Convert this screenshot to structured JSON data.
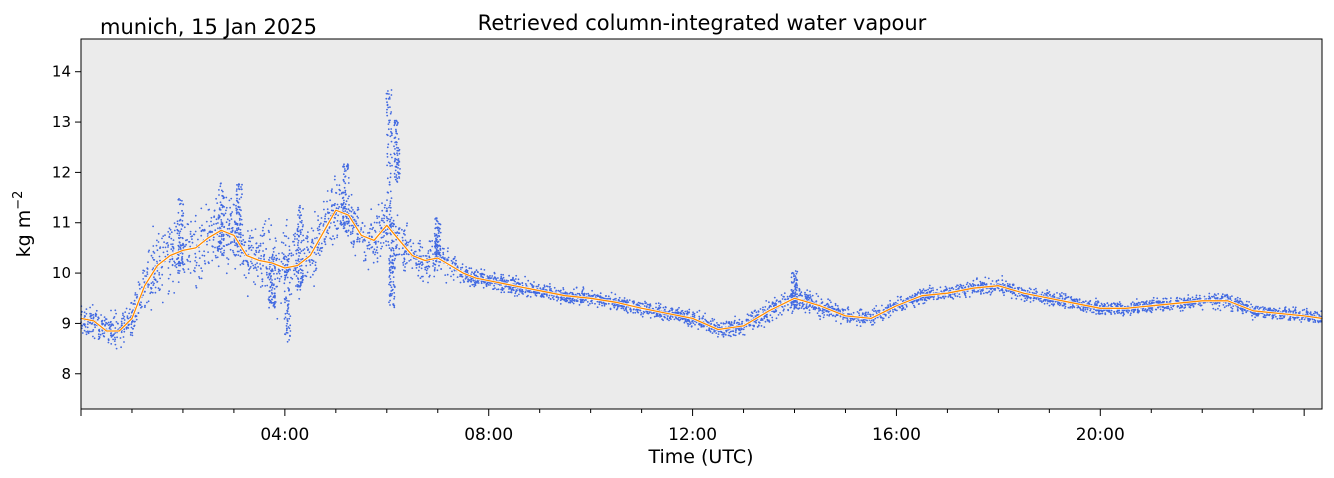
{
  "chart_data": {
    "type": "scatter",
    "title": "Retrieved column-integrated water vapour",
    "subtitle": "munich, 15 Jan 2025",
    "xlabel": "Time (UTC)",
    "ylabel_main": "kg m",
    "ylabel_sup": "−2",
    "x_unit": "hours UTC",
    "xlim": [
      0,
      24.35
    ],
    "ylim": [
      7.3,
      14.65
    ],
    "x_ticks": [
      {
        "value": 4,
        "label": "04:00"
      },
      {
        "value": 8,
        "label": "08:00"
      },
      {
        "value": 12,
        "label": "12:00"
      },
      {
        "value": 16,
        "label": "16:00"
      },
      {
        "value": 20,
        "label": "20:00"
      },
      {
        "value": 24,
        "label": ""
      }
    ],
    "y_ticks": [
      {
        "value": 8,
        "label": "8"
      },
      {
        "value": 9,
        "label": "9"
      },
      {
        "value": 10,
        "label": "10"
      },
      {
        "value": 11,
        "label": "11"
      },
      {
        "value": 12,
        "label": "12"
      },
      {
        "value": 13,
        "label": "13"
      },
      {
        "value": 14,
        "label": "14"
      }
    ],
    "grid": false,
    "background": "#ebebeb",
    "series": [
      {
        "kind": "scatter",
        "color": "#4169e1",
        "x": [
          0.0,
          0.25,
          0.5,
          0.75,
          1.0,
          1.25,
          1.5,
          1.75,
          2.0,
          2.25,
          2.5,
          2.75,
          3.0,
          3.25,
          3.5,
          3.75,
          4.0,
          4.25,
          4.5,
          4.75,
          5.0,
          5.25,
          5.5,
          5.75,
          6.0,
          6.25,
          6.5,
          6.75,
          7.0,
          7.25,
          7.5,
          7.75,
          8.0,
          8.5,
          9.0,
          9.5,
          10.0,
          10.5,
          11.0,
          11.5,
          12.0,
          12.5,
          13.0,
          13.5,
          14.0,
          14.5,
          15.0,
          15.5,
          16.0,
          16.5,
          17.0,
          17.5,
          18.0,
          18.5,
          19.0,
          19.5,
          20.0,
          20.5,
          21.0,
          21.5,
          22.0,
          22.5,
          23.0,
          23.5,
          24.0,
          24.35
        ],
        "y": [
          9.1,
          9.05,
          8.85,
          8.85,
          9.1,
          9.75,
          10.15,
          10.35,
          10.45,
          10.5,
          10.7,
          10.85,
          10.75,
          10.35,
          10.25,
          10.2,
          10.1,
          10.15,
          10.35,
          10.8,
          11.25,
          11.15,
          10.75,
          10.65,
          10.95,
          10.65,
          10.35,
          10.25,
          10.3,
          10.15,
          10.0,
          9.9,
          9.85,
          9.75,
          9.65,
          9.55,
          9.5,
          9.42,
          9.3,
          9.2,
          9.1,
          8.88,
          8.95,
          9.25,
          9.5,
          9.35,
          9.15,
          9.1,
          9.35,
          9.55,
          9.6,
          9.7,
          9.75,
          9.6,
          9.5,
          9.4,
          9.3,
          9.3,
          9.35,
          9.4,
          9.45,
          9.45,
          9.25,
          9.2,
          9.15,
          9.1
        ],
        "spread": [
          0.25,
          0.25,
          0.3,
          0.3,
          0.35,
          0.5,
          0.6,
          0.6,
          0.6,
          0.6,
          0.6,
          0.65,
          0.6,
          0.55,
          0.6,
          0.7,
          0.7,
          0.55,
          0.5,
          0.55,
          0.6,
          0.45,
          0.4,
          0.45,
          0.45,
          0.35,
          0.4,
          0.4,
          0.35,
          0.25,
          0.18,
          0.16,
          0.15,
          0.14,
          0.13,
          0.13,
          0.13,
          0.13,
          0.13,
          0.12,
          0.13,
          0.15,
          0.16,
          0.2,
          0.22,
          0.18,
          0.15,
          0.13,
          0.13,
          0.12,
          0.12,
          0.12,
          0.13,
          0.12,
          0.12,
          0.12,
          0.12,
          0.12,
          0.12,
          0.12,
          0.13,
          0.15,
          0.13,
          0.12,
          0.12,
          0.12
        ],
        "spikes": [
          {
            "x": 1.95,
            "y_min": 10.0,
            "y_max": 11.5
          },
          {
            "x": 2.75,
            "y_min": 10.3,
            "y_max": 11.8
          },
          {
            "x": 3.1,
            "y_min": 10.4,
            "y_max": 11.8
          },
          {
            "x": 3.75,
            "y_min": 9.3,
            "y_max": 10.4
          },
          {
            "x": 4.05,
            "y_min": 8.6,
            "y_max": 10.4
          },
          {
            "x": 4.3,
            "y_min": 9.6,
            "y_max": 11.4
          },
          {
            "x": 5.2,
            "y_min": 10.8,
            "y_max": 12.2
          },
          {
            "x": 6.05,
            "y_min": 10.9,
            "y_max": 13.65
          },
          {
            "x": 6.2,
            "y_min": 11.8,
            "y_max": 13.05
          },
          {
            "x": 6.1,
            "y_min": 9.3,
            "y_max": 10.4
          },
          {
            "x": 7.0,
            "y_min": 10.3,
            "y_max": 11.1
          },
          {
            "x": 14.0,
            "y_min": 9.3,
            "y_max": 10.05
          }
        ]
      },
      {
        "kind": "line",
        "color": "#ff8c00",
        "x": [
          0.0,
          0.25,
          0.5,
          0.75,
          1.0,
          1.25,
          1.5,
          1.75,
          2.0,
          2.25,
          2.5,
          2.75,
          3.0,
          3.25,
          3.5,
          3.75,
          4.0,
          4.25,
          4.5,
          4.75,
          5.0,
          5.25,
          5.5,
          5.75,
          6.0,
          6.25,
          6.5,
          6.75,
          7.0,
          7.25,
          7.5,
          7.75,
          8.0,
          8.5,
          9.0,
          9.5,
          10.0,
          10.5,
          11.0,
          11.5,
          12.0,
          12.5,
          13.0,
          13.5,
          14.0,
          14.5,
          15.0,
          15.5,
          16.0,
          16.5,
          17.0,
          17.5,
          18.0,
          18.5,
          19.0,
          19.5,
          20.0,
          20.5,
          21.0,
          21.5,
          22.0,
          22.5,
          23.0,
          23.5,
          24.0,
          24.35
        ],
        "y": [
          9.1,
          9.05,
          8.85,
          8.85,
          9.1,
          9.75,
          10.15,
          10.35,
          10.45,
          10.5,
          10.7,
          10.85,
          10.75,
          10.35,
          10.25,
          10.2,
          10.1,
          10.15,
          10.35,
          10.8,
          11.25,
          11.15,
          10.75,
          10.65,
          10.95,
          10.65,
          10.35,
          10.25,
          10.3,
          10.15,
          10.0,
          9.9,
          9.85,
          9.75,
          9.65,
          9.55,
          9.5,
          9.42,
          9.3,
          9.2,
          9.1,
          8.88,
          8.95,
          9.25,
          9.5,
          9.35,
          9.15,
          9.1,
          9.35,
          9.55,
          9.6,
          9.7,
          9.75,
          9.6,
          9.5,
          9.4,
          9.3,
          9.3,
          9.35,
          9.4,
          9.45,
          9.45,
          9.25,
          9.2,
          9.15,
          9.1
        ]
      }
    ]
  }
}
